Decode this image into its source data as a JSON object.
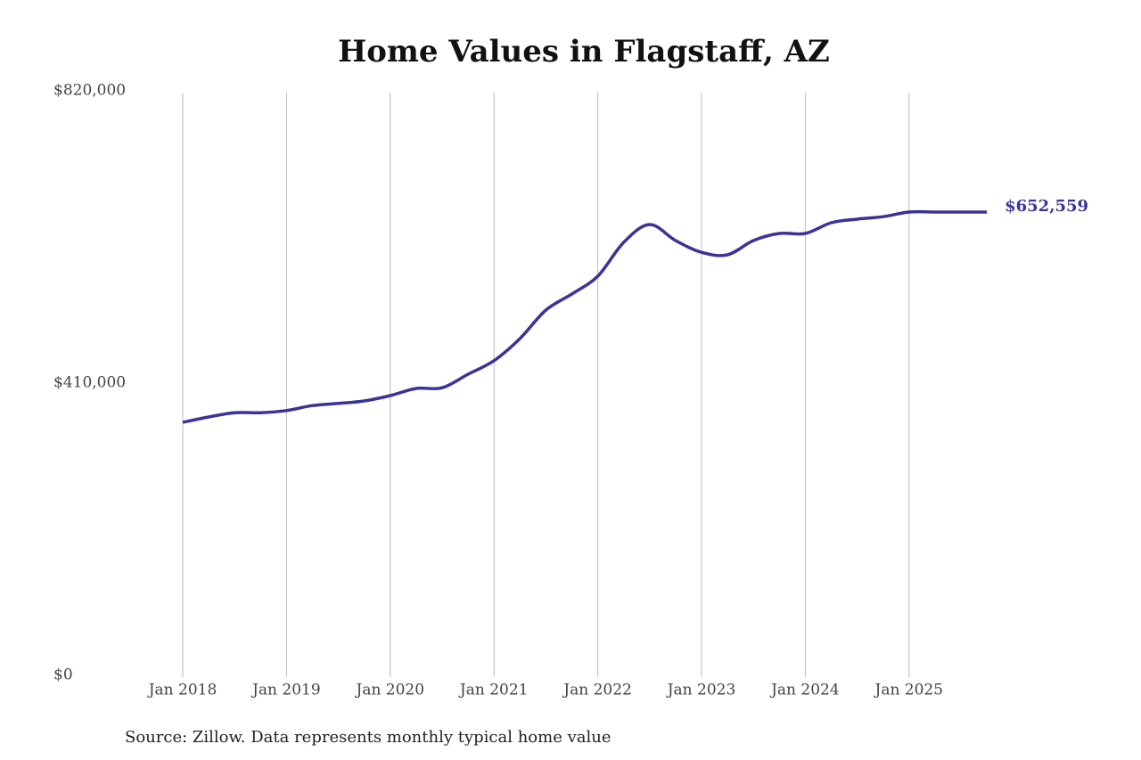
{
  "chart_data": {
    "type": "line",
    "title": "Home Values in Flagstaff, AZ",
    "source": "Source: Zillow. Data represents monthly typical home value",
    "x": [
      "2018-01",
      "2018-04",
      "2018-07",
      "2018-10",
      "2019-01",
      "2019-04",
      "2019-07",
      "2019-10",
      "2020-01",
      "2020-04",
      "2020-07",
      "2020-10",
      "2021-01",
      "2021-04",
      "2021-07",
      "2021-10",
      "2022-01",
      "2022-04",
      "2022-07",
      "2022-10",
      "2023-01",
      "2023-04",
      "2023-07",
      "2023-10",
      "2024-01",
      "2024-04",
      "2024-07",
      "2024-10",
      "2025-01",
      "2025-04",
      "2025-07",
      "2025-10"
    ],
    "series": [
      {
        "name": "Home value",
        "color": "#3a3399",
        "values": [
          357500,
          365000,
          371000,
          371000,
          374000,
          381000,
          384000,
          387500,
          395000,
          405000,
          406000,
          425000,
          444000,
          475000,
          515000,
          537500,
          562500,
          610000,
          635000,
          612500,
          596000,
          592500,
          612500,
          622500,
          622500,
          637500,
          642500,
          646000,
          652500,
          652500,
          652500,
          652559
        ],
        "value_labels": [
          null,
          null,
          null,
          null,
          null,
          null,
          null,
          null,
          null,
          null,
          null,
          null,
          null,
          null,
          null,
          null,
          null,
          null,
          null,
          null,
          null,
          null,
          null,
          null,
          null,
          null,
          null,
          null,
          null,
          null,
          null,
          "$652,559"
        ]
      }
    ],
    "xticks": [
      {
        "value": "2018-01",
        "label": "Jan 2018"
      },
      {
        "value": "2019-01",
        "label": "Jan 2019"
      },
      {
        "value": "2020-01",
        "label": "Jan 2020"
      },
      {
        "value": "2021-01",
        "label": "Jan 2021"
      },
      {
        "value": "2022-01",
        "label": "Jan 2022"
      },
      {
        "value": "2023-01",
        "label": "Jan 2023"
      },
      {
        "value": "2024-01",
        "label": "Jan 2024"
      },
      {
        "value": "2025-01",
        "label": "Jan 2025"
      }
    ],
    "ylim": [
      0,
      820000
    ],
    "yticks": [
      {
        "value": 0,
        "label": "$0"
      },
      {
        "value": 410000,
        "label": "$410,000"
      },
      {
        "value": 820000,
        "label": "$820,000"
      }
    ],
    "grid": "x"
  }
}
